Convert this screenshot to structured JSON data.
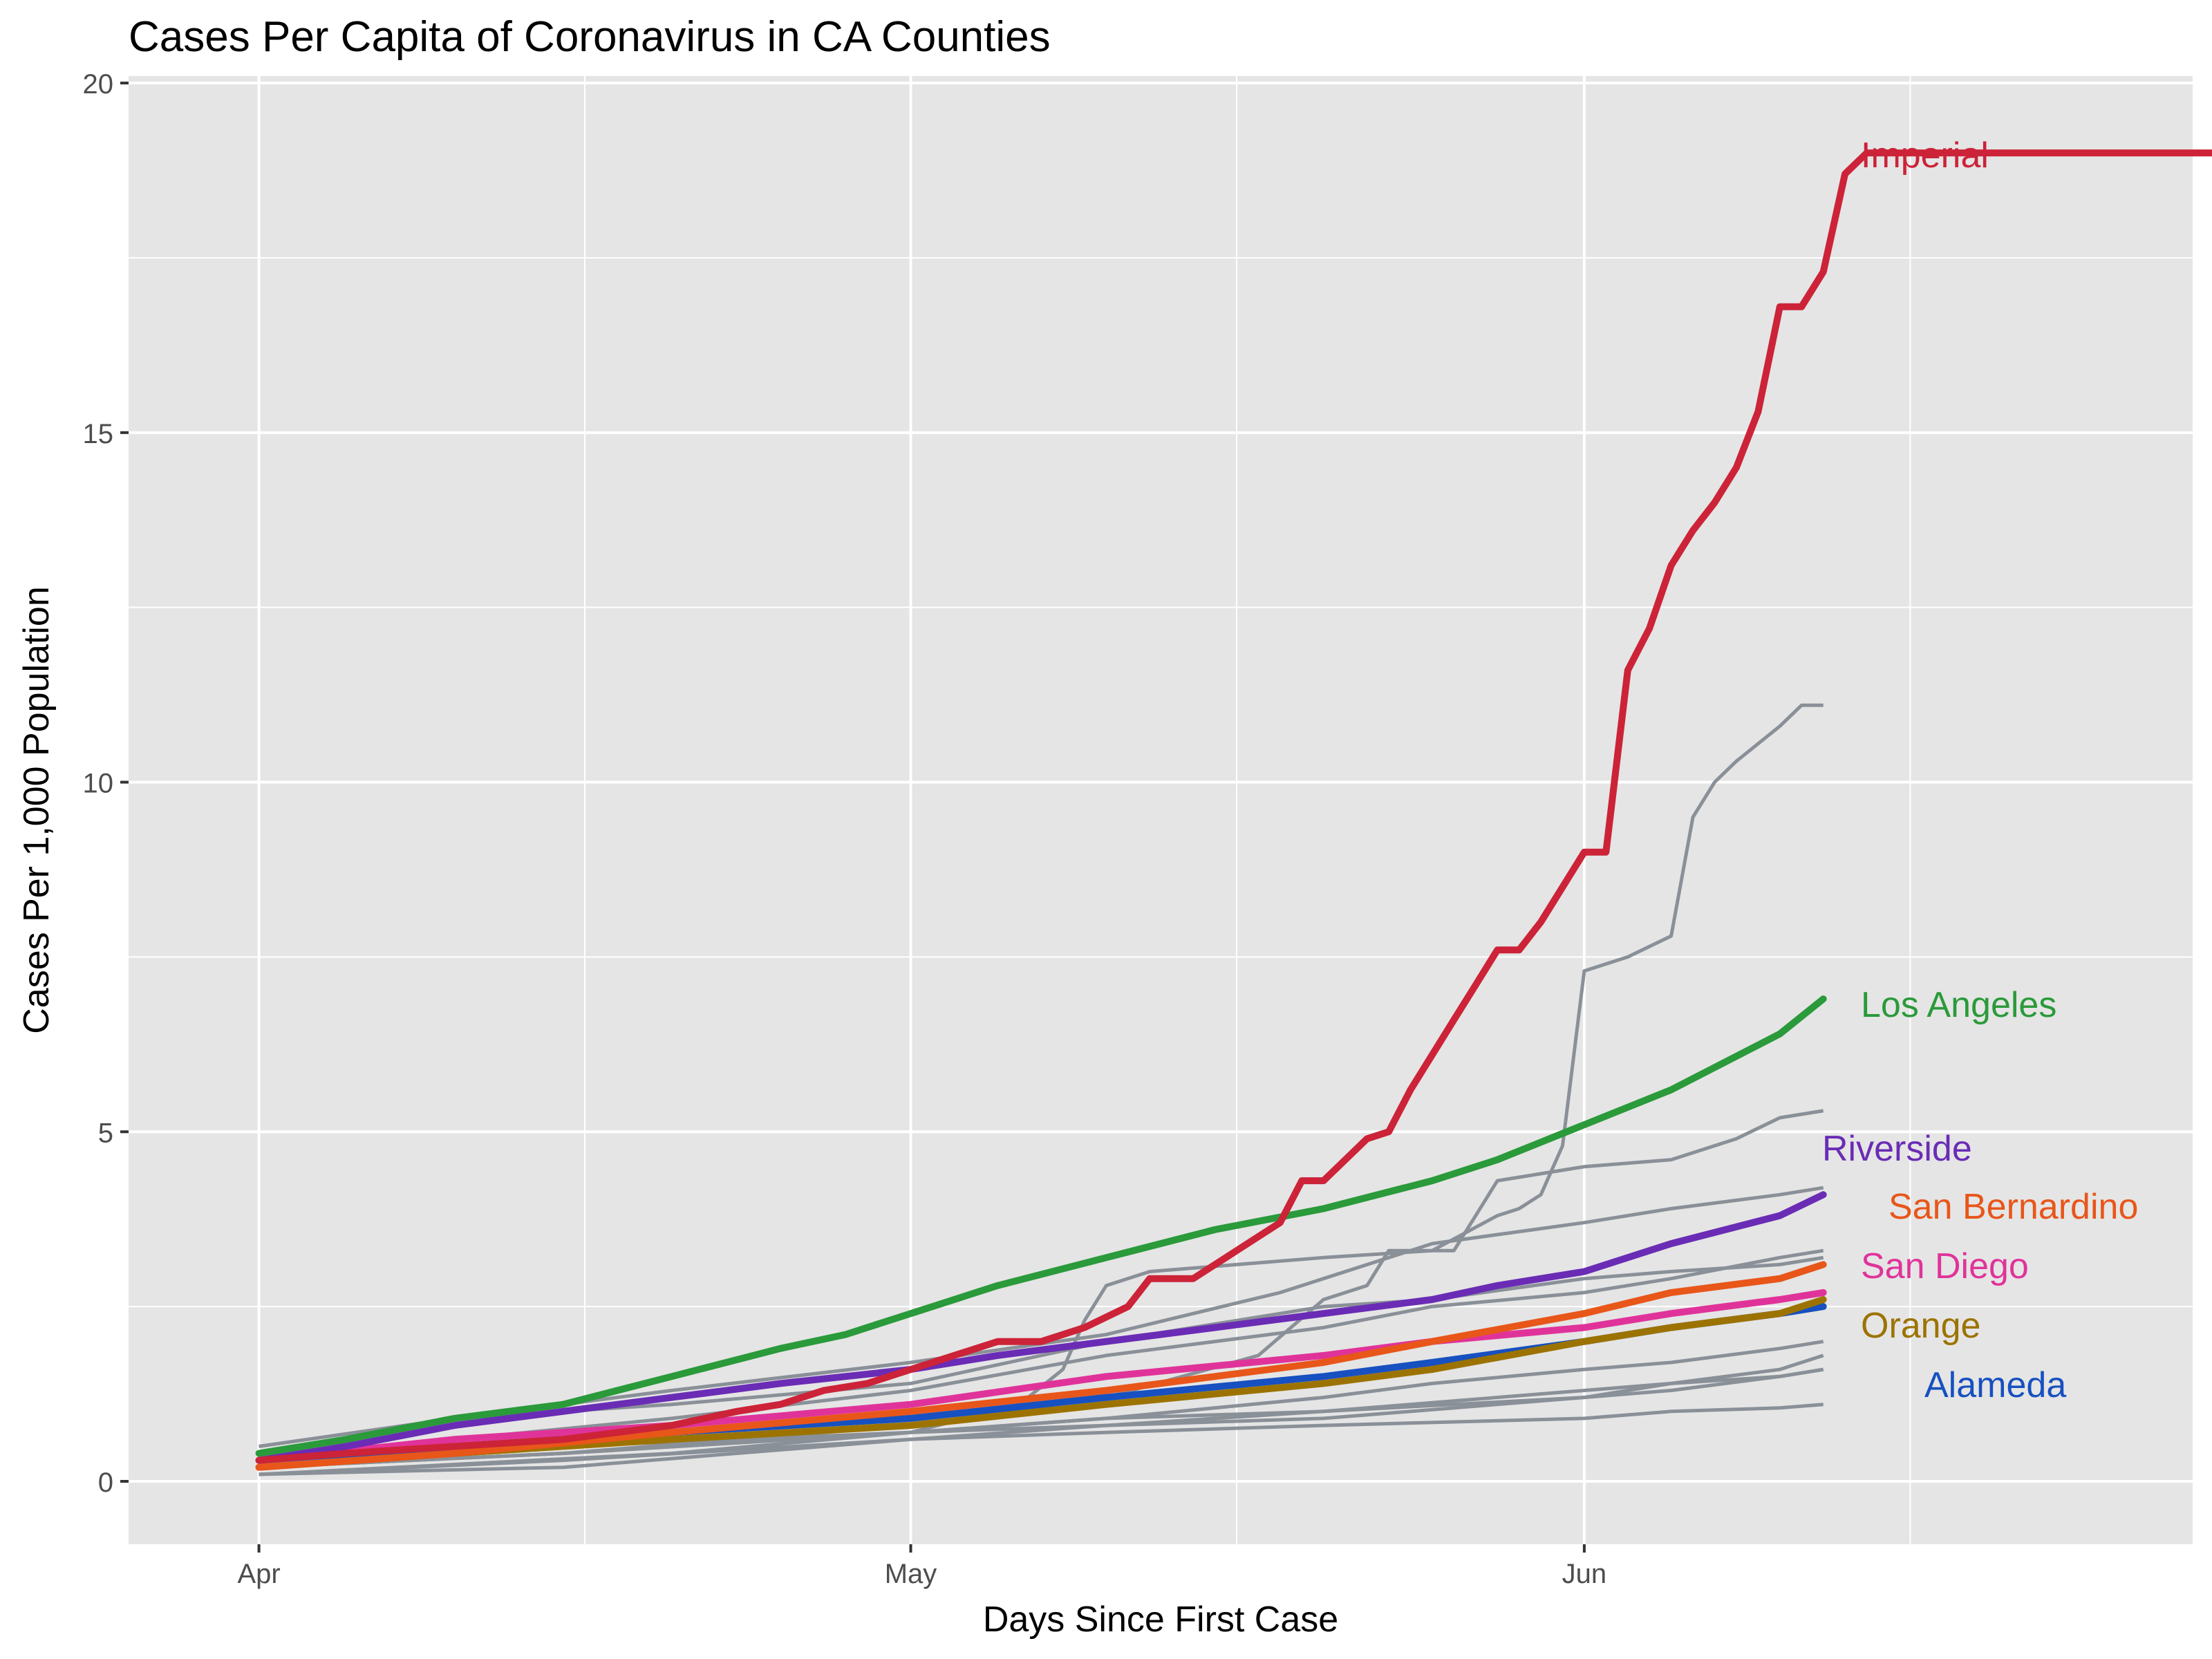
{
  "chart_data": {
    "type": "line",
    "title": "Cases Per Capita of Coronavirus in CA Counties",
    "xlabel": "Days Since First Case",
    "ylabel": "Cases Per 1,000 Population",
    "x_axis": {
      "type": "date",
      "range": [
        "2020-03-26",
        "2020-06-29"
      ],
      "tick_labels": [
        {
          "date": "2020-04-01",
          "label": "Apr"
        },
        {
          "date": "2020-05-01",
          "label": "May"
        },
        {
          "date": "2020-06-01",
          "label": "Jun"
        }
      ],
      "minor_gridlines": [
        "2020-04-16",
        "2020-05-16",
        "2020-06-16"
      ]
    },
    "y_axis": {
      "range": [
        -0.9,
        20.1
      ],
      "ticks": [
        0,
        5,
        10,
        15,
        20
      ],
      "minor_gridlines": [
        2.5,
        7.5,
        12.5,
        17.5
      ]
    },
    "grid": true,
    "panel_background": "#E5E5E5",
    "grid_color": "#FFFFFF",
    "legend": "direct labels at line ends",
    "highlighted_series": [
      {
        "name": "Imperial",
        "color": "#CC2338",
        "x": [
          "2020-04-01",
          "2020-04-05",
          "2020-04-10",
          "2020-04-15",
          "2020-04-20",
          "2020-04-23",
          "2020-04-25",
          "2020-04-27",
          "2020-04-29",
          "2020-05-01",
          "2020-05-03",
          "2020-05-05",
          "2020-05-07",
          "2020-05-09",
          "2020-05-11",
          "2020-05-12",
          "2020-05-14",
          "2020-05-16",
          "2020-05-18",
          "2020-05-19",
          "2020-05-20",
          "2020-05-22",
          "2020-05-23",
          "2020-05-24",
          "2020-05-25",
          "2020-05-26",
          "2020-05-27",
          "2020-05-28",
          "2020-05-29",
          "2020-05-30",
          "2020-05-31",
          "2020-06-01",
          "2020-06-02",
          "2020-06-03",
          "2020-06-04",
          "2020-06-05",
          "2020-06-06",
          "2020-06-07",
          "2020-06-08",
          "2020-06-09",
          "2020-06-10",
          "2020-06-11",
          "2020-06-12",
          "2020-06-13",
          "2020-06-14",
          "2020-06-15",
          "2020-06-16",
          "2020-06-17",
          "2020-06-18",
          "2020-06-19",
          "2020-06-20",
          "2020-06-21",
          "2020-06-22",
          "2020-06-23",
          "2020-06-24",
          "2020-06-25",
          "2020-06-26",
          "2020-06-27",
          "2020-06-28",
          "2020-06-29",
          "2020-06-30",
          "2020-07-01",
          "2020-07-02",
          "2020-07-03",
          "2020-07-04",
          "2020-07-05",
          "2020-07-06",
          "2020-07-07",
          "2020-07-08",
          "2020-07-09",
          "2020-07-10",
          "2020-07-11",
          "2020-07-12",
          "2020-07-13",
          "2020-07-14",
          "2020-07-15",
          "2020-07-16",
          "2020-07-17",
          "2020-07-18",
          "2020-07-19"
        ],
        "y": [
          0.3,
          0.4,
          0.5,
          0.6,
          0.8,
          1.0,
          1.1,
          1.3,
          1.4,
          1.6,
          1.8,
          2.0,
          2.0,
          2.2,
          2.5,
          2.9,
          2.9,
          3.3,
          3.7,
          4.3,
          4.3,
          4.9,
          5.0,
          5.6,
          6.1,
          6.6,
          7.1,
          7.6,
          7.6,
          8.0,
          8.5,
          9.0,
          9.0,
          11.6,
          12.2,
          13.1,
          13.6,
          14.0,
          14.5,
          15.3,
          16.8,
          16.8,
          17.3,
          18.7,
          19.0,
          19.0,
          19.0,
          19.0,
          19.0,
          19.0,
          19.0,
          19.0,
          19.0,
          19.0,
          19.0,
          19.0,
          19.0,
          19.0,
          19.0,
          19.0,
          19.0,
          19.0,
          19.0,
          19.0,
          19.0,
          19.0,
          19.0,
          19.0,
          19.0,
          19.0,
          19.0,
          19.0,
          19.0,
          19.0,
          19.0,
          19.0,
          19.0,
          19.0,
          19.0,
          19.0
        ]
      },
      {
        "name": "Los Angeles",
        "color": "#2A9A3A",
        "x": [
          "2020-04-01",
          "2020-04-05",
          "2020-04-10",
          "2020-04-15",
          "2020-04-20",
          "2020-04-25",
          "2020-04-28",
          "2020-05-01",
          "2020-05-05",
          "2020-05-10",
          "2020-05-15",
          "2020-05-20",
          "2020-05-25",
          "2020-05-28",
          "2020-06-01",
          "2020-06-05",
          "2020-06-10",
          "2020-06-12"
        ],
        "y": [
          0.4,
          0.6,
          0.9,
          1.1,
          1.5,
          1.9,
          2.1,
          2.4,
          2.8,
          3.2,
          3.6,
          3.9,
          4.3,
          4.6,
          5.1,
          5.6,
          6.4,
          6.9
        ]
      },
      {
        "name": "Riverside",
        "color": "#6A2CB5",
        "x": [
          "2020-04-01",
          "2020-04-05",
          "2020-04-10",
          "2020-04-15",
          "2020-04-20",
          "2020-04-25",
          "2020-05-01",
          "2020-05-05",
          "2020-05-10",
          "2020-05-15",
          "2020-05-20",
          "2020-05-25",
          "2020-05-28",
          "2020-06-01",
          "2020-06-05",
          "2020-06-10",
          "2020-06-12"
        ],
        "y": [
          0.3,
          0.5,
          0.8,
          1.0,
          1.2,
          1.4,
          1.6,
          1.8,
          2.0,
          2.2,
          2.4,
          2.6,
          2.8,
          3.0,
          3.4,
          3.8,
          4.1
        ]
      },
      {
        "name": "San Bernardino",
        "color": "#E8561A",
        "x": [
          "2020-04-01",
          "2020-04-10",
          "2020-04-20",
          "2020-05-01",
          "2020-05-10",
          "2020-05-20",
          "2020-05-25",
          "2020-06-01",
          "2020-06-05",
          "2020-06-10",
          "2020-06-12"
        ],
        "y": [
          0.2,
          0.4,
          0.7,
          1.0,
          1.3,
          1.7,
          2.0,
          2.4,
          2.7,
          2.9,
          3.1
        ]
      },
      {
        "name": "San Diego",
        "color": "#E0339A",
        "x": [
          "2020-04-01",
          "2020-04-10",
          "2020-04-20",
          "2020-05-01",
          "2020-05-10",
          "2020-05-20",
          "2020-05-25",
          "2020-06-01",
          "2020-06-05",
          "2020-06-10",
          "2020-06-12"
        ],
        "y": [
          0.3,
          0.6,
          0.8,
          1.1,
          1.5,
          1.8,
          2.0,
          2.2,
          2.4,
          2.6,
          2.7
        ]
      },
      {
        "name": "Orange",
        "color": "#9C7300",
        "x": [
          "2020-04-01",
          "2020-04-10",
          "2020-04-20",
          "2020-05-01",
          "2020-05-10",
          "2020-05-20",
          "2020-05-25",
          "2020-06-01",
          "2020-06-05",
          "2020-06-10",
          "2020-06-12"
        ],
        "y": [
          0.2,
          0.4,
          0.6,
          0.8,
          1.1,
          1.4,
          1.6,
          2.0,
          2.2,
          2.4,
          2.6
        ]
      },
      {
        "name": "Alameda",
        "color": "#1750C0",
        "x": [
          "2020-04-01",
          "2020-04-10",
          "2020-04-20",
          "2020-05-01",
          "2020-05-10",
          "2020-05-20",
          "2020-05-25",
          "2020-06-01",
          "2020-06-05",
          "2020-06-10",
          "2020-06-12"
        ],
        "y": [
          0.3,
          0.5,
          0.7,
          0.9,
          1.2,
          1.5,
          1.7,
          2.0,
          2.2,
          2.4,
          2.5
        ]
      }
    ],
    "other_series_color": "#8A9098",
    "other_series": [
      {
        "x": [
          "2020-04-01",
          "2020-04-20",
          "2020-05-01",
          "2020-05-06",
          "2020-05-08",
          "2020-05-09",
          "2020-05-10",
          "2020-05-12",
          "2020-05-16",
          "2020-05-20",
          "2020-05-25",
          "2020-05-28",
          "2020-05-29",
          "2020-05-30",
          "2020-05-31",
          "2020-06-01",
          "2020-06-03",
          "2020-06-05",
          "2020-06-06",
          "2020-06-07",
          "2020-06-08",
          "2020-06-10",
          "2020-06-11",
          "2020-06-12"
        ],
        "y": [
          0.1,
          0.4,
          0.7,
          1.1,
          1.6,
          2.3,
          2.8,
          3.0,
          3.1,
          3.2,
          3.3,
          3.8,
          3.9,
          4.1,
          4.8,
          7.3,
          7.5,
          7.8,
          9.5,
          10.0,
          10.3,
          10.8,
          11.1,
          11.1
        ]
      },
      {
        "x": [
          "2020-04-01",
          "2020-04-15",
          "2020-05-01",
          "2020-05-10",
          "2020-05-17",
          "2020-05-20",
          "2020-05-22",
          "2020-05-23",
          "2020-05-26",
          "2020-05-28",
          "2020-06-01",
          "2020-06-05",
          "2020-06-08",
          "2020-06-10",
          "2020-06-12"
        ],
        "y": [
          0.2,
          0.4,
          0.8,
          1.2,
          1.8,
          2.6,
          2.8,
          3.3,
          3.3,
          4.3,
          4.5,
          4.6,
          4.9,
          5.2,
          5.3
        ]
      },
      {
        "x": [
          "2020-04-01",
          "2020-04-10",
          "2020-04-20",
          "2020-05-01",
          "2020-05-10",
          "2020-05-18",
          "2020-05-25",
          "2020-06-01",
          "2020-06-05",
          "2020-06-10",
          "2020-06-12"
        ],
        "y": [
          0.5,
          0.9,
          1.3,
          1.7,
          2.1,
          2.7,
          3.4,
          3.7,
          3.9,
          4.1,
          4.2
        ]
      },
      {
        "x": [
          "2020-04-01",
          "2020-04-10",
          "2020-04-20",
          "2020-05-01",
          "2020-05-10",
          "2020-05-20",
          "2020-05-25",
          "2020-06-01",
          "2020-06-05",
          "2020-06-10",
          "2020-06-12"
        ],
        "y": [
          0.5,
          0.9,
          1.1,
          1.4,
          2.0,
          2.5,
          2.6,
          2.9,
          3.0,
          3.1,
          3.2
        ]
      },
      {
        "x": [
          "2020-04-01",
          "2020-04-10",
          "2020-04-20",
          "2020-05-01",
          "2020-05-10",
          "2020-05-20",
          "2020-05-25",
          "2020-06-01",
          "2020-06-05",
          "2020-06-10",
          "2020-06-12"
        ],
        "y": [
          0.3,
          0.6,
          0.9,
          1.3,
          1.8,
          2.2,
          2.5,
          2.7,
          2.9,
          3.2,
          3.3
        ]
      },
      {
        "x": [
          "2020-04-01",
          "2020-04-15",
          "2020-05-01",
          "2020-05-10",
          "2020-05-20",
          "2020-05-25",
          "2020-06-01",
          "2020-06-05",
          "2020-06-10",
          "2020-06-12"
        ],
        "y": [
          0.2,
          0.4,
          0.7,
          0.9,
          1.2,
          1.4,
          1.6,
          1.7,
          1.9,
          2.0
        ]
      },
      {
        "x": [
          "2020-04-01",
          "2020-04-15",
          "2020-05-01",
          "2020-05-10",
          "2020-05-20",
          "2020-06-01",
          "2020-06-05",
          "2020-06-10",
          "2020-06-12"
        ],
        "y": [
          0.2,
          0.4,
          0.7,
          0.8,
          1.0,
          1.2,
          1.4,
          1.6,
          1.8
        ]
      },
      {
        "x": [
          "2020-04-01",
          "2020-04-15",
          "2020-05-01",
          "2020-05-10",
          "2020-05-20",
          "2020-06-01",
          "2020-06-05",
          "2020-06-10",
          "2020-06-12"
        ],
        "y": [
          0.3,
          0.5,
          0.7,
          0.9,
          1.0,
          1.3,
          1.4,
          1.5,
          1.6
        ]
      },
      {
        "x": [
          "2020-04-01",
          "2020-04-15",
          "2020-05-01",
          "2020-05-10",
          "2020-05-20",
          "2020-06-01",
          "2020-06-05",
          "2020-06-10",
          "2020-06-12"
        ],
        "y": [
          0.1,
          0.2,
          0.6,
          0.8,
          0.9,
          1.2,
          1.3,
          1.5,
          1.6
        ]
      },
      {
        "x": [
          "2020-04-01",
          "2020-04-15",
          "2020-05-01",
          "2020-05-10",
          "2020-05-20",
          "2020-06-01",
          "2020-06-05",
          "2020-06-10",
          "2020-06-12"
        ],
        "y": [
          0.1,
          0.3,
          0.6,
          0.7,
          0.8,
          0.9,
          1.0,
          1.05,
          1.1
        ]
      }
    ]
  }
}
